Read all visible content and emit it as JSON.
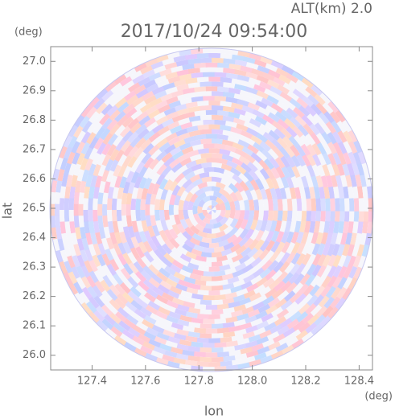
{
  "chart_data": {
    "type": "radar-field",
    "title": "2017/10/24 09:54:00",
    "subtitle": "ALT(km) 2.0",
    "x_label": "lon",
    "y_label": "lat",
    "x_unit": "(deg)",
    "y_unit": "(deg)",
    "xlim": [
      127.245,
      128.45
    ],
    "ylim": [
      25.95,
      27.05
    ],
    "xticks": [
      127.4,
      127.6,
      127.8,
      {
        "value": 128,
        "label": "128.0"
      },
      128.2,
      128.4
    ],
    "yticks": [
      {
        "value": 26,
        "label": "26.0"
      },
      26.1,
      26.2,
      26.3,
      26.4,
      26.5,
      26.6,
      26.7,
      26.8,
      26.9,
      {
        "value": 27,
        "label": "27.0"
      }
    ]
  }
}
